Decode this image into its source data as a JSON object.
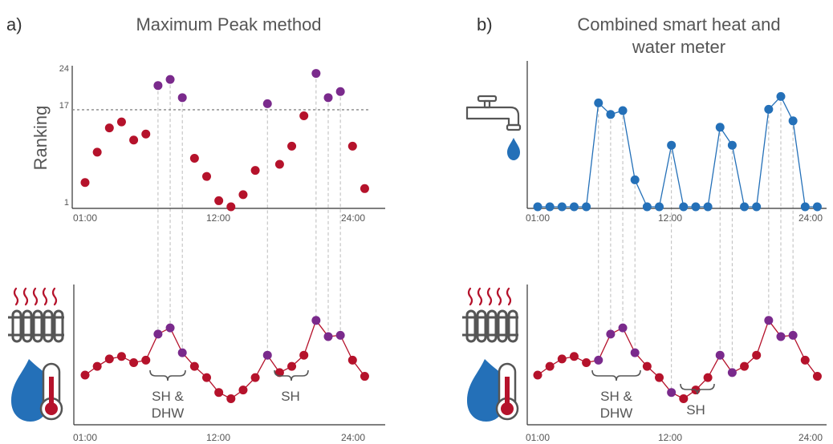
{
  "colors": {
    "red": "#b5122b",
    "purple": "#7a2a8c",
    "blue": "#2470b8",
    "axis": "#333333",
    "text": "#555555",
    "guide": "#bbbbbb",
    "threshold": "#888888",
    "icon_gray": "#555555"
  },
  "icons": [
    "radiator-icon",
    "water-drop-thermometer-icon",
    "water-tap-icon"
  ],
  "panel_a": {
    "letter": "a)",
    "title": "Maximum Peak method",
    "ranking_chart": {
      "type": "scatter",
      "ylabel": "Ranking",
      "y_ticks": [
        "24",
        "17",
        "1"
      ],
      "x_ticks": [
        "01:00",
        "12:00",
        "24:00"
      ],
      "ylim": [
        1,
        24
      ],
      "threshold": 17,
      "hours": [
        1,
        2,
        3,
        4,
        5,
        6,
        7,
        8,
        9,
        10,
        11,
        12,
        13,
        14,
        15,
        16,
        17,
        18,
        19,
        20,
        21,
        22,
        23,
        24
      ],
      "ranks": [
        5,
        10,
        14,
        15,
        12,
        13,
        21,
        22,
        19,
        9,
        6,
        2,
        1,
        3,
        7,
        18,
        8,
        11,
        16,
        23,
        19,
        20,
        11,
        4
      ],
      "above_threshold_hours": [
        7,
        8,
        9,
        16,
        20,
        21,
        22
      ]
    },
    "heat_chart": {
      "type": "line",
      "x_ticks": [
        "01:00",
        "12:00",
        "24:00"
      ],
      "hours": [
        1,
        2,
        3,
        4,
        5,
        6,
        7,
        8,
        9,
        10,
        11,
        12,
        13,
        14,
        15,
        16,
        17,
        18,
        19,
        20,
        21,
        22,
        23,
        24
      ],
      "values": [
        4.0,
        4.7,
        5.3,
        5.5,
        5.0,
        5.2,
        7.3,
        7.8,
        5.8,
        4.7,
        3.8,
        2.6,
        2.1,
        2.8,
        3.8,
        5.6,
        4.2,
        4.7,
        5.6,
        8.4,
        7.1,
        7.2,
        5.2,
        3.9
      ],
      "highlight_hours": [
        7,
        8,
        9,
        16,
        20,
        21,
        22
      ],
      "annotations": [
        {
          "label_line1": "SH &",
          "label_line2": "DHW",
          "from_hour": 7,
          "to_hour": 10
        },
        {
          "label_line1": "SH",
          "label_line2": "",
          "from_hour": 16,
          "to_hour": 18
        }
      ]
    }
  },
  "panel_b": {
    "letter": "b)",
    "title_line1": "Combined smart heat and",
    "title_line2": "water meter",
    "water_chart": {
      "type": "line",
      "x_ticks": [
        "01:00",
        "12:00",
        "24:00"
      ],
      "hours": [
        1,
        2,
        3,
        4,
        5,
        6,
        7,
        8,
        9,
        10,
        11,
        12,
        13,
        14,
        15,
        16,
        17,
        18,
        19,
        20,
        21,
        22,
        23,
        24
      ],
      "values": [
        0,
        0,
        0,
        0,
        0,
        8.1,
        7.2,
        7.5,
        2.1,
        0,
        0,
        4.8,
        0,
        0,
        0,
        6.2,
        4.8,
        0,
        0,
        7.6,
        8.6,
        6.7,
        0,
        0
      ]
    },
    "heat_chart": {
      "type": "line",
      "x_ticks": [
        "01:00",
        "12:00",
        "24:00"
      ],
      "hours": [
        1,
        2,
        3,
        4,
        5,
        6,
        7,
        8,
        9,
        10,
        11,
        12,
        13,
        14,
        15,
        16,
        17,
        18,
        19,
        20,
        21,
        22,
        23,
        24
      ],
      "values": [
        4.0,
        4.7,
        5.3,
        5.5,
        5.0,
        5.2,
        7.3,
        7.8,
        5.8,
        4.7,
        3.8,
        2.6,
        2.1,
        2.8,
        3.8,
        5.6,
        4.2,
        4.7,
        5.6,
        8.4,
        7.1,
        7.2,
        5.2,
        3.9
      ],
      "highlight_hours": [
        6,
        7,
        8,
        9,
        12,
        16,
        17,
        20,
        21,
        22
      ],
      "annotations": [
        {
          "label_line1": "SH &",
          "label_line2": "DHW",
          "from_hour": 6,
          "to_hour": 10
        },
        {
          "label_line1": "SH",
          "label_line2": "",
          "from_hour": 13,
          "to_hour": 16
        }
      ]
    }
  }
}
